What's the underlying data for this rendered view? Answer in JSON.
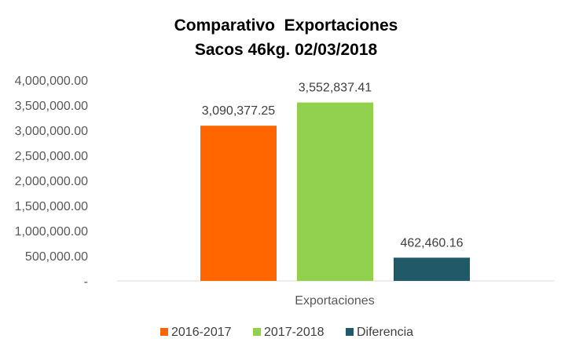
{
  "chart_data": {
    "type": "bar",
    "title": "Comparativo  Exportaciones",
    "subtitle": "Sacos 46kg. 02/03/2018",
    "categories": [
      "Exportaciones"
    ],
    "series": [
      {
        "name": "2016-2017",
        "values": [
          3090377.25
        ],
        "label": "3,090,377.25",
        "color": "#FF6600"
      },
      {
        "name": "2017-2018",
        "values": [
          3552837.41
        ],
        "label": "3,552,837.41",
        "color": "#92D050"
      },
      {
        "name": "Diferencia",
        "values": [
          462460.16
        ],
        "label": "462,460.16",
        "color": "#215968"
      }
    ],
    "ylim": [
      0,
      4000000
    ],
    "yticks": [
      0,
      500000,
      1000000,
      1500000,
      2000000,
      2500000,
      3000000,
      3500000,
      4000000
    ],
    "ytick_labels": [
      "-",
      "500,000.00",
      "1,000,000.00",
      "1,500,000.00",
      "2,000,000.00",
      "2,500,000.00",
      "3,000,000.00",
      "3,500,000.00",
      "4,000,000.00"
    ],
    "grid": false,
    "legend_position": "bottom"
  }
}
